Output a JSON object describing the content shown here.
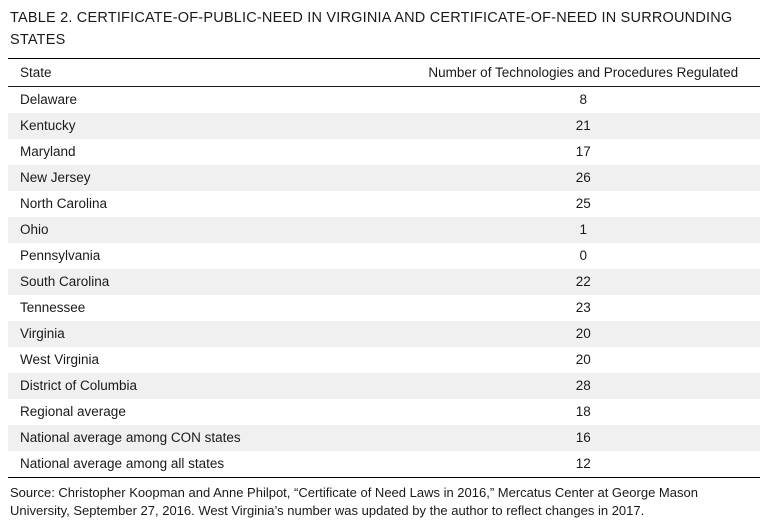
{
  "page": {
    "title": "TABLE 2. CERTIFICATE-OF-PUBLIC-NEED IN VIRGINIA AND CERTIFICATE-OF-NEED IN SURROUNDING STATES",
    "source": "Source: Christopher Koopman and Anne Philpot, “Certificate of Need Laws in 2016,” Mercatus Center at George Mason University, September 27, 2016. West Virginia’s number was updated by the author to reflect changes in 2017."
  },
  "chart_data": {
    "type": "table",
    "title": "TABLE 2. CERTIFICATE-OF-PUBLIC-NEED IN VIRGINIA AND CERTIFICATE-OF-NEED IN SURROUNDING STATES",
    "columns": [
      "State",
      "Number of Technologies and Procedures Regulated"
    ],
    "rows": [
      {
        "state": "Delaware",
        "value": 8
      },
      {
        "state": "Kentucky",
        "value": 21
      },
      {
        "state": "Maryland",
        "value": 17
      },
      {
        "state": "New Jersey",
        "value": 26
      },
      {
        "state": "North Carolina",
        "value": 25
      },
      {
        "state": "Ohio",
        "value": 1
      },
      {
        "state": "Pennsylvania",
        "value": 0
      },
      {
        "state": "South Carolina",
        "value": 22
      },
      {
        "state": "Tennessee",
        "value": 23
      },
      {
        "state": "Virginia",
        "value": 20
      },
      {
        "state": "West Virginia",
        "value": 20
      },
      {
        "state": "District of Columbia",
        "value": 28
      },
      {
        "state": "Regional average",
        "value": 18
      },
      {
        "state": "National average among CON states",
        "value": 16
      },
      {
        "state": "National average among all states",
        "value": 12
      }
    ],
    "layout": {
      "striped_rows": "even",
      "stripe_color": "#f0f0f0",
      "value_alignment": "center"
    }
  }
}
